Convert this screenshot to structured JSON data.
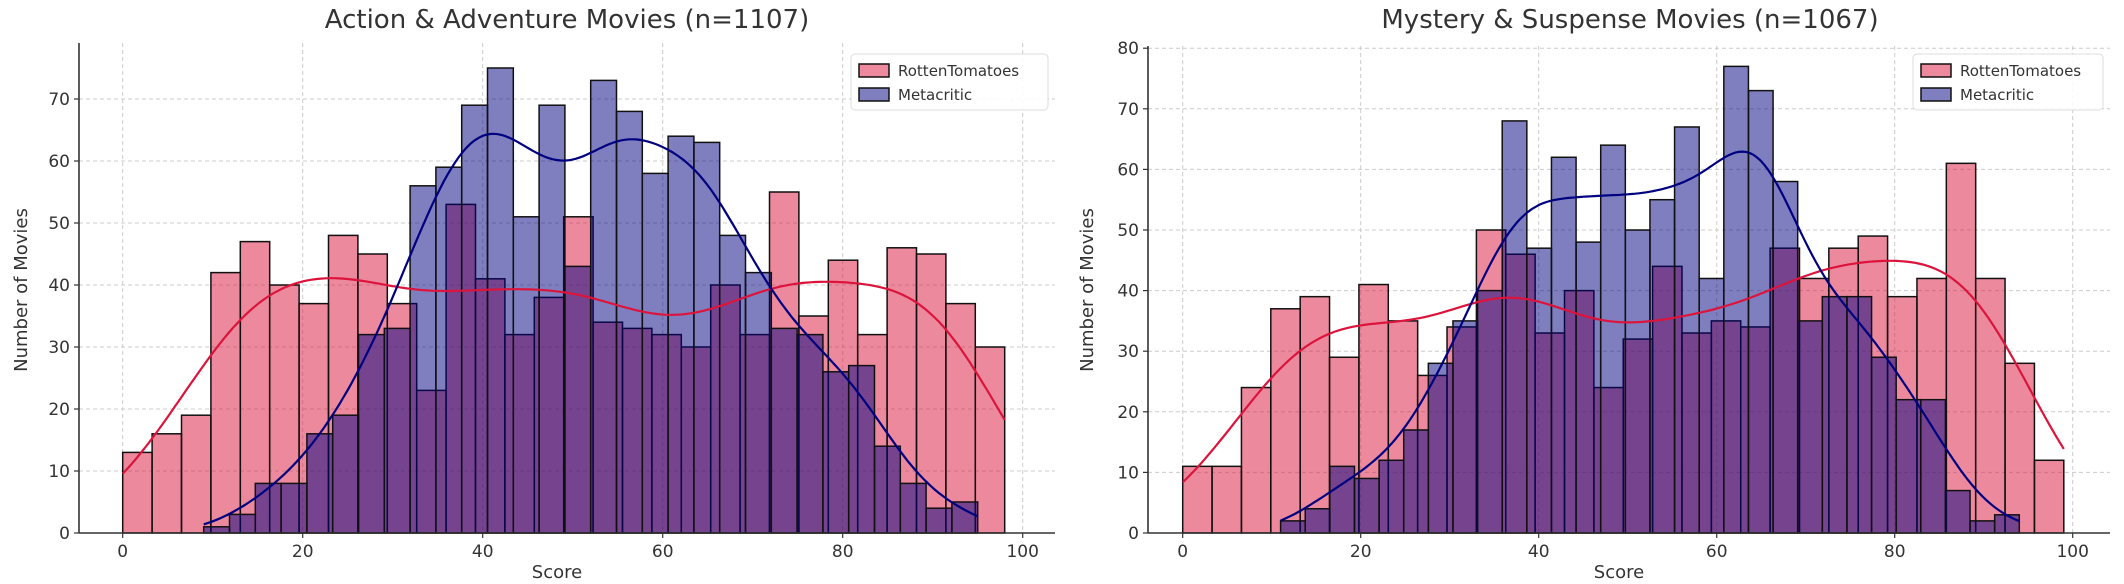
{
  "chart_data": [
    {
      "type": "bar",
      "subtype": "histogram-with-kde",
      "title": "Action & Adventure Movies (n=1107)",
      "xlabel": "Score",
      "ylabel": "Number of Movies",
      "xlim": [
        -5,
        105
      ],
      "ylim": [
        0,
        79
      ],
      "xticks": [
        "0",
        "20",
        "40",
        "60",
        "80",
        "100"
      ],
      "yticks": [
        "0",
        "10",
        "20",
        "30",
        "40",
        "50",
        "60",
        "70"
      ],
      "grid": true,
      "legend_position": "top-right",
      "series": [
        {
          "name": "RottenTomatoes",
          "color": "#DC143C",
          "bin_start": 0,
          "bin_end": 98,
          "counts": [
            13,
            16,
            19,
            42,
            47,
            40,
            37,
            48,
            45,
            37,
            23,
            53,
            41,
            32,
            38,
            51,
            34,
            33,
            32,
            30,
            40,
            32,
            55,
            35,
            44,
            32,
            46,
            45,
            37,
            30
          ]
        },
        {
          "name": "Metacritic",
          "color": "#000080",
          "bin_start": 9,
          "bin_end": 95,
          "counts": [
            1,
            3,
            8,
            8,
            16,
            19,
            32,
            33,
            56,
            59,
            69,
            75,
            51,
            69,
            43,
            73,
            68,
            58,
            64,
            63,
            48,
            42,
            33,
            32,
            26,
            27,
            14,
            8,
            4,
            5
          ]
        }
      ]
    },
    {
      "type": "bar",
      "subtype": "histogram-with-kde",
      "title": "Mystery & Suspense Movies (n=1067)",
      "xlabel": "Score",
      "ylabel": "Number of Movies",
      "xlim": [
        -5,
        105
      ],
      "ylim": [
        0,
        81
      ],
      "xticks": [
        "0",
        "20",
        "40",
        "60",
        "80",
        "100"
      ],
      "yticks": [
        "0",
        "10",
        "20",
        "30",
        "40",
        "50",
        "60",
        "70",
        "80"
      ],
      "grid": true,
      "legend_position": "top-right",
      "series": [
        {
          "name": "RottenTomatoes",
          "color": "#DC143C",
          "bin_start": 0,
          "bin_end": 99,
          "counts": [
            11,
            11,
            24,
            37,
            39,
            29,
            41,
            35,
            26,
            34,
            50,
            46,
            33,
            40,
            24,
            32,
            44,
            33,
            35,
            34,
            47,
            42,
            47,
            49,
            39,
            42,
            61,
            42,
            28,
            12
          ]
        },
        {
          "name": "Metacritic",
          "color": "#000080",
          "bin_start": 11,
          "bin_end": 94,
          "counts": [
            2,
            4,
            11,
            9,
            12,
            17,
            28,
            35,
            40,
            68,
            47,
            62,
            48,
            64,
            50,
            55,
            67,
            42,
            77,
            73,
            58,
            35,
            39,
            39,
            29,
            22,
            22,
            7,
            2,
            3
          ]
        }
      ]
    }
  ]
}
